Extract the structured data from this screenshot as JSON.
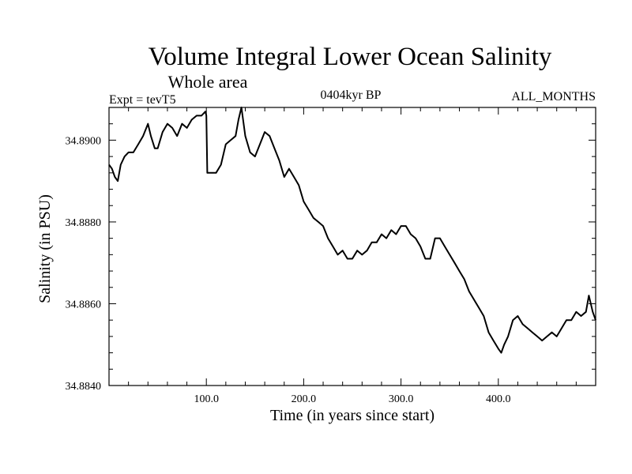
{
  "chart_data": {
    "type": "line",
    "title": "Volume Integral Lower Ocean Salinity",
    "subtitle": "Whole area",
    "experiment_label": "Expt = tevT5",
    "period_label": "0404kyr BP",
    "months_label": "ALL_MONTHS",
    "xlabel": "Time (in years since start)",
    "ylabel": "Salinity (in PSU)",
    "xlim": [
      0,
      500
    ],
    "ylim": [
      34.884,
      34.8908
    ],
    "x_ticks": [
      {
        "value": 100,
        "label": "100.0"
      },
      {
        "value": 200,
        "label": "200.0"
      },
      {
        "value": 300,
        "label": "300.0"
      },
      {
        "value": 400,
        "label": "400.0"
      }
    ],
    "y_ticks": [
      {
        "value": 34.884,
        "label": "34.8840"
      },
      {
        "value": 34.886,
        "label": "34.8860"
      },
      {
        "value": 34.888,
        "label": "34.8880"
      },
      {
        "value": 34.89,
        "label": "34.8900"
      }
    ],
    "grid": false,
    "line_color": "#000000",
    "series": [
      {
        "x": [
          0,
          3,
          6,
          9,
          12,
          16,
          20,
          25,
          30,
          35,
          40,
          43,
          47,
          50,
          55,
          60,
          65,
          70,
          75,
          80,
          85,
          90,
          95,
          99,
          100,
          101,
          105,
          110,
          115,
          120,
          125,
          130,
          133,
          136,
          140,
          145,
          150,
          155,
          160,
          165,
          170,
          175,
          180,
          185,
          190,
          195,
          200,
          205,
          210,
          215,
          220,
          225,
          230,
          235,
          240,
          245,
          250,
          255,
          260,
          265,
          270,
          275,
          280,
          285,
          290,
          295,
          300,
          305,
          310,
          315,
          320,
          325,
          330,
          335,
          340,
          345,
          350,
          355,
          360,
          365,
          370,
          375,
          380,
          385,
          390,
          395,
          400,
          403,
          406,
          410,
          415,
          420,
          425,
          430,
          435,
          440,
          445,
          450,
          455,
          460,
          465,
          470,
          475,
          480,
          485,
          490,
          493,
          497,
          500
        ],
        "y": [
          34.8894,
          34.8893,
          34.8891,
          34.889,
          34.8894,
          34.8896,
          34.8897,
          34.8897,
          34.8899,
          34.8901,
          34.8904,
          34.8901,
          34.8898,
          34.8898,
          34.8902,
          34.8904,
          34.8903,
          34.8901,
          34.8904,
          34.8903,
          34.8905,
          34.8906,
          34.8906,
          34.8907,
          34.8906,
          34.8892,
          34.8892,
          34.8892,
          34.8894,
          34.8899,
          34.89,
          34.8901,
          34.8905,
          34.8908,
          34.8901,
          34.8897,
          34.8896,
          34.8899,
          34.8902,
          34.8901,
          34.8898,
          34.8895,
          34.8891,
          34.8893,
          34.8891,
          34.8889,
          34.8885,
          34.8883,
          34.8881,
          34.888,
          34.8879,
          34.8876,
          34.8874,
          34.8872,
          34.8873,
          34.8871,
          34.8871,
          34.8873,
          34.8872,
          34.8873,
          34.8875,
          34.8875,
          34.8877,
          34.8876,
          34.8878,
          34.8877,
          34.8879,
          34.8879,
          34.8877,
          34.8876,
          34.8874,
          34.8871,
          34.8871,
          34.8876,
          34.8876,
          34.8874,
          34.8872,
          34.887,
          34.8868,
          34.8866,
          34.8863,
          34.8861,
          34.8859,
          34.8857,
          34.8853,
          34.8851,
          34.8849,
          34.8848,
          34.885,
          34.8852,
          34.8856,
          34.8857,
          34.8855,
          34.8854,
          34.8853,
          34.8852,
          34.8851,
          34.8852,
          34.8853,
          34.8852,
          34.8854,
          34.8856,
          34.8856,
          34.8858,
          34.8857,
          34.8858,
          34.8862,
          34.8858,
          34.8856
        ]
      }
    ]
  }
}
